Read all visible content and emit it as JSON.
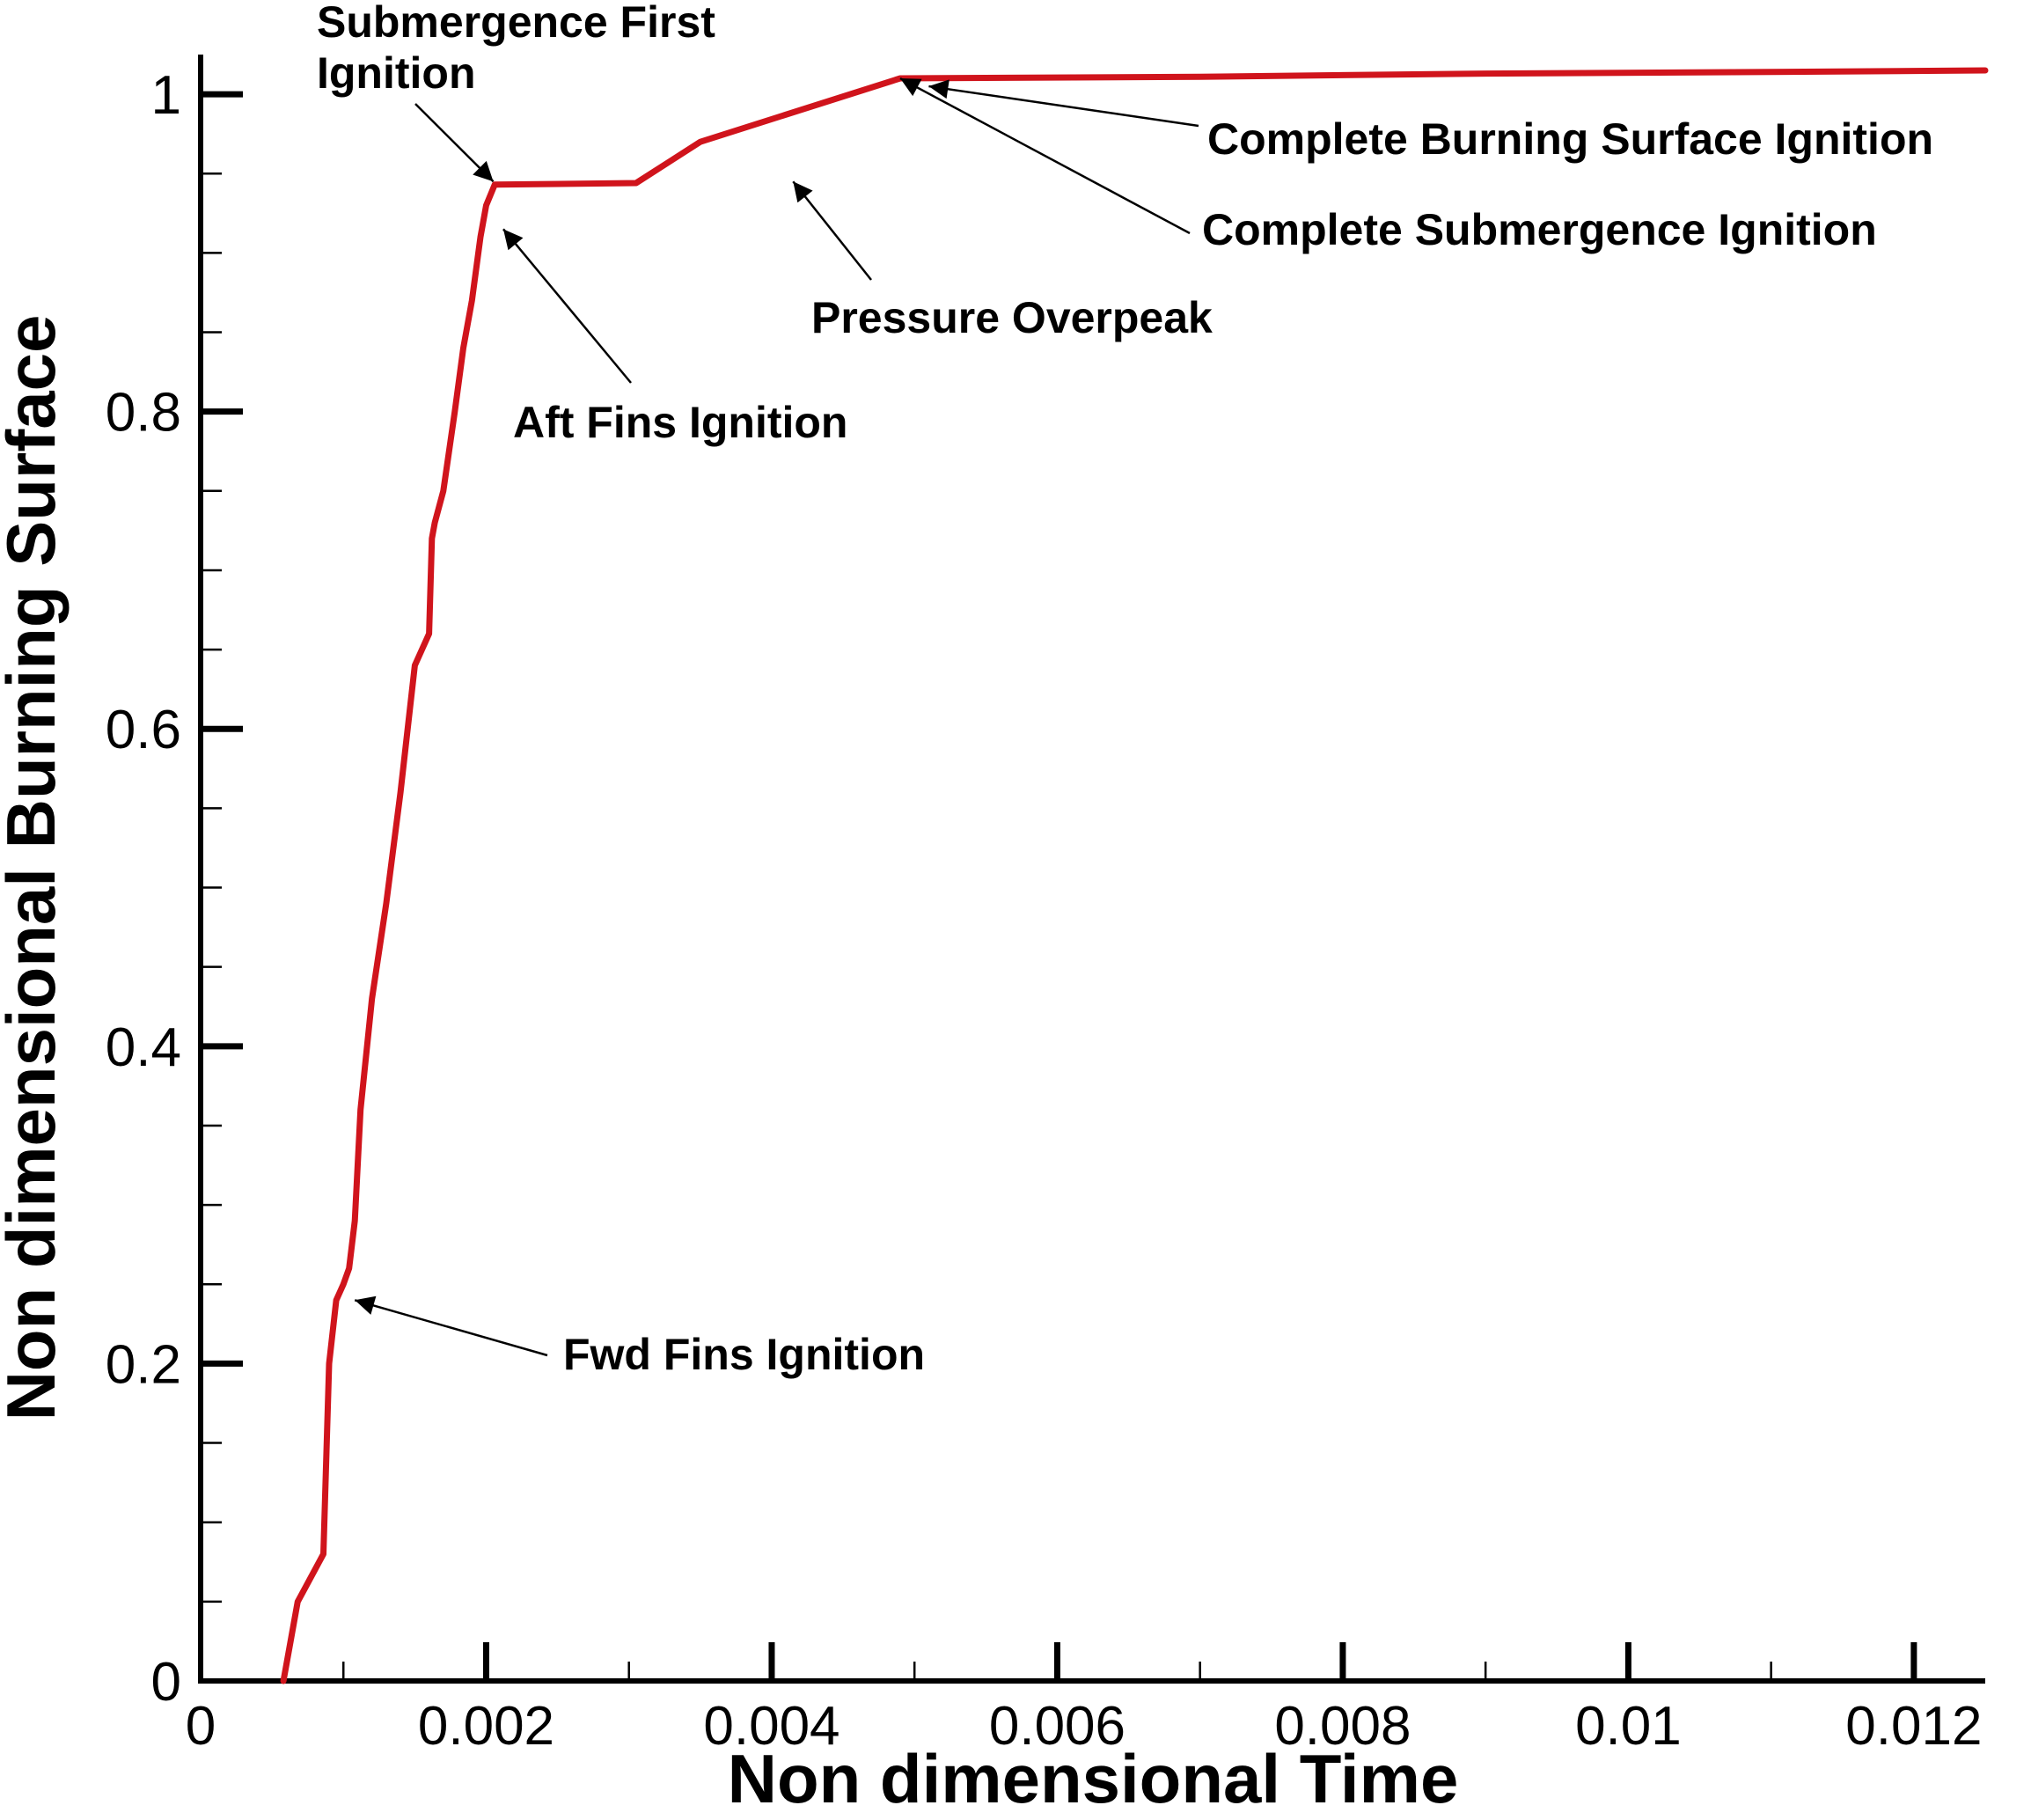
{
  "chart_data": {
    "type": "line",
    "title": "",
    "xlabel": "Non dimensional Time",
    "ylabel": "Non dimensional Burning Surface",
    "xlim": [
      0,
      0.0125
    ],
    "ylim": [
      0,
      1.025
    ],
    "x_ticks": [
      0,
      0.002,
      0.004,
      0.006,
      0.008,
      0.01,
      0.012
    ],
    "x_tick_labels": [
      "0",
      "0.002",
      "0.004",
      "0.006",
      "0.008",
      "0.01",
      "0.012"
    ],
    "y_ticks": [
      0,
      0.2,
      0.4,
      0.6,
      0.8,
      1
    ],
    "y_tick_labels": [
      "0",
      "0.2",
      "0.4",
      "0.6",
      "0.8",
      "1"
    ],
    "grid": false,
    "legend": "none",
    "series": [
      {
        "color": "#d0141c",
        "x": [
          0.00058,
          0.00062,
          0.00068,
          0.00074,
          0.0008,
          0.00086,
          0.0009,
          0.00095,
          0.001,
          0.00104,
          0.00108,
          0.00112,
          0.0012,
          0.0013,
          0.0014,
          0.0015,
          0.0016,
          0.00162,
          0.00164,
          0.0017,
          0.00178,
          0.00184,
          0.0019,
          0.00196,
          0.002,
          0.00206,
          0.00305,
          0.0035,
          0.0049,
          0.007,
          0.009,
          0.011,
          0.0125
        ],
        "y": [
          0.0,
          0.02,
          0.05,
          0.06,
          0.07,
          0.08,
          0.2,
          0.24,
          0.25,
          0.26,
          0.29,
          0.36,
          0.43,
          0.49,
          0.56,
          0.64,
          0.66,
          0.72,
          0.73,
          0.75,
          0.8,
          0.84,
          0.87,
          0.91,
          0.93,
          0.943,
          0.944,
          0.97,
          1.01,
          1.011,
          1.013,
          1.014,
          1.015
        ]
      }
    ],
    "annotations": [
      {
        "lines": [
          "Submergence First",
          "Ignition"
        ],
        "x": 0.00205,
        "y": 0.945
      },
      {
        "lines": [
          "Aft Fins Ignition"
        ],
        "x": 0.00212,
        "y": 0.915
      },
      {
        "lines": [
          "Pressure Overpeak"
        ],
        "x": 0.00415,
        "y": 0.945
      },
      {
        "lines": [
          "Complete Burning Surface Ignition"
        ],
        "x": 0.0051,
        "y": 1.005
      },
      {
        "lines": [
          "Complete Submergence Ignition"
        ],
        "x": 0.0049,
        "y": 1.01
      },
      {
        "lines": [
          "Fwd Fins Ignition"
        ],
        "x": 0.00108,
        "y": 0.24
      }
    ]
  }
}
